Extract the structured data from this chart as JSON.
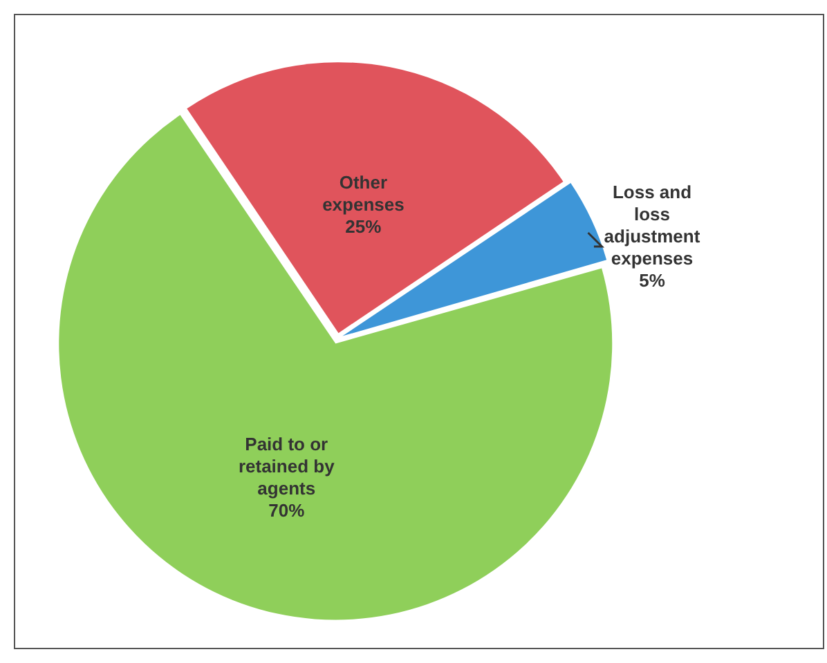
{
  "chart_data": {
    "type": "pie",
    "categories": [
      "Paid to or retained by agents",
      "Other expenses",
      "Loss and loss adjustment expenses"
    ],
    "values": [
      70,
      25,
      5
    ],
    "value_labels": [
      "70%",
      "25%",
      "5%"
    ],
    "colors": [
      "#8fcf5a",
      "#e0545c",
      "#3e96d8"
    ],
    "legend": false
  }
}
